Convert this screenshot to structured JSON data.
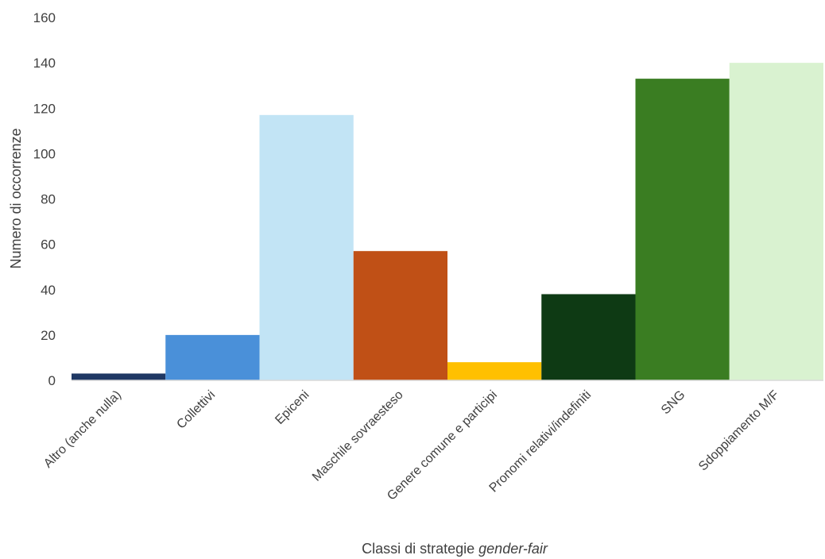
{
  "chart_data": {
    "type": "bar",
    "title": "",
    "xlabel_prefix": "Classi di strategie ",
    "xlabel_emphasis": "gender-fair",
    "ylabel": "Numero di occorrenze",
    "ylim": [
      0,
      160
    ],
    "yticks": [
      0,
      20,
      40,
      60,
      80,
      100,
      120,
      140,
      160
    ],
    "grid": false,
    "legend": "none",
    "categories": [
      "Altro (anche nulla)",
      "Collettivi",
      "Epiceni",
      "Maschile sovraesteso",
      "Genere comune e participi",
      "Pronomi relativi/indefiniti",
      "SNG",
      "Sdoppiamento M/F"
    ],
    "values": [
      3,
      20,
      117,
      57,
      8,
      38,
      133,
      140
    ],
    "colors": [
      "#1f3864",
      "#4a90d9",
      "#c2e4f5",
      "#c05016",
      "#ffc000",
      "#0e3a14",
      "#3a7d22",
      "#d9f2d0"
    ],
    "axis_color": "#d9d9d9",
    "text_color": "#404040"
  }
}
